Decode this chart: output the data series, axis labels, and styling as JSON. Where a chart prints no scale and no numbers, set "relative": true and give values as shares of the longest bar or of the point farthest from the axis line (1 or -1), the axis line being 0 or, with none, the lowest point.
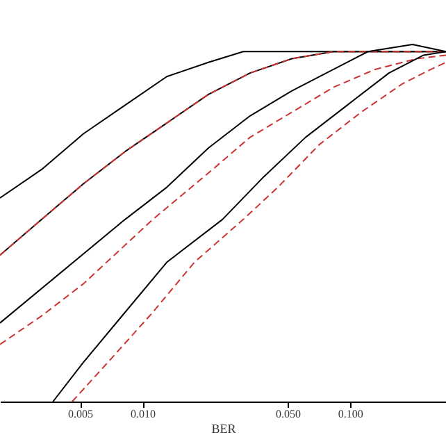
{
  "chart_data": {
    "type": "line",
    "xlabel": "BER",
    "log": "x",
    "relative": true,
    "xlim": [
      0.00206,
      0.29
    ],
    "xticks": [
      {
        "value": 0.005,
        "label": "0.005"
      },
      {
        "value": 0.01,
        "label": "0.010"
      },
      {
        "value": 0.05,
        "label": "0.050"
      },
      {
        "value": 0.1,
        "label": "0.100"
      }
    ],
    "grid": false,
    "marker": "none",
    "series": [
      {
        "color": "#000000",
        "line_style": "solid",
        "x": [
          0.00206,
          0.00327,
          0.0052,
          0.00825,
          0.0131,
          0.0208,
          0.0306,
          0.0485,
          0.29
        ],
        "values": [
          0.57,
          0.65,
          0.75,
          0.83,
          0.91,
          0.95,
          0.98,
          0.98,
          0.98
        ]
      },
      {
        "color": "#000000",
        "line_style": "solid",
        "x": [
          0.00206,
          0.00327,
          0.0052,
          0.00825,
          0.0131,
          0.0208,
          0.033,
          0.0524,
          0.0832,
          0.113,
          0.29
        ],
        "values": [
          0.41,
          0.51,
          0.61,
          0.7,
          0.78,
          0.86,
          0.92,
          0.96,
          0.98,
          0.98,
          0.98
        ]
      },
      {
        "color": "#cc3333",
        "line_style": "dashed",
        "x": [
          0.00206,
          0.00327,
          0.0052,
          0.00825,
          0.0131,
          0.0208,
          0.033,
          0.0524,
          0.0832,
          0.113,
          0.29
        ],
        "values": [
          0.41,
          0.51,
          0.61,
          0.7,
          0.78,
          0.86,
          0.92,
          0.96,
          0.98,
          0.98,
          0.98
        ]
      },
      {
        "color": "#000000",
        "line_style": "solid",
        "x": [
          0.00206,
          0.00825,
          0.0131,
          0.0208,
          0.033,
          0.0524,
          0.0832,
          0.122,
          0.2,
          0.29
        ],
        "values": [
          0.22,
          0.51,
          0.6,
          0.71,
          0.8,
          0.87,
          0.93,
          0.98,
          1.0,
          0.98
        ]
      },
      {
        "color": "#cc3333",
        "line_style": "dashed",
        "x": [
          0.00206,
          0.00327,
          0.0052,
          0.01122,
          0.0208,
          0.033,
          0.0524,
          0.0832,
          0.132,
          0.209,
          0.29
        ],
        "values": [
          0.16,
          0.24,
          0.33,
          0.51,
          0.64,
          0.74,
          0.81,
          0.88,
          0.93,
          0.96,
          0.97
        ]
      },
      {
        "color": "#000000",
        "line_style": "solid",
        "x": [
          0.00371,
          0.0052,
          0.00825,
          0.0131,
          0.0243,
          0.0385,
          0.0611,
          0.097,
          0.154,
          0.226,
          0.29
        ],
        "values": [
          0,
          0.11,
          0.25,
          0.39,
          0.51,
          0.63,
          0.74,
          0.83,
          0.92,
          0.97,
          0.98
        ]
      },
      {
        "color": "#cc3333",
        "line_style": "dashed",
        "x": [
          0.00459,
          0.00707,
          0.01122,
          0.0178,
          0.0306,
          0.0449,
          0.0713,
          0.113,
          0.179,
          0.245,
          0.29
        ],
        "values": [
          0,
          0.12,
          0.25,
          0.39,
          0.51,
          0.6,
          0.72,
          0.81,
          0.89,
          0.93,
          0.95
        ]
      }
    ]
  }
}
